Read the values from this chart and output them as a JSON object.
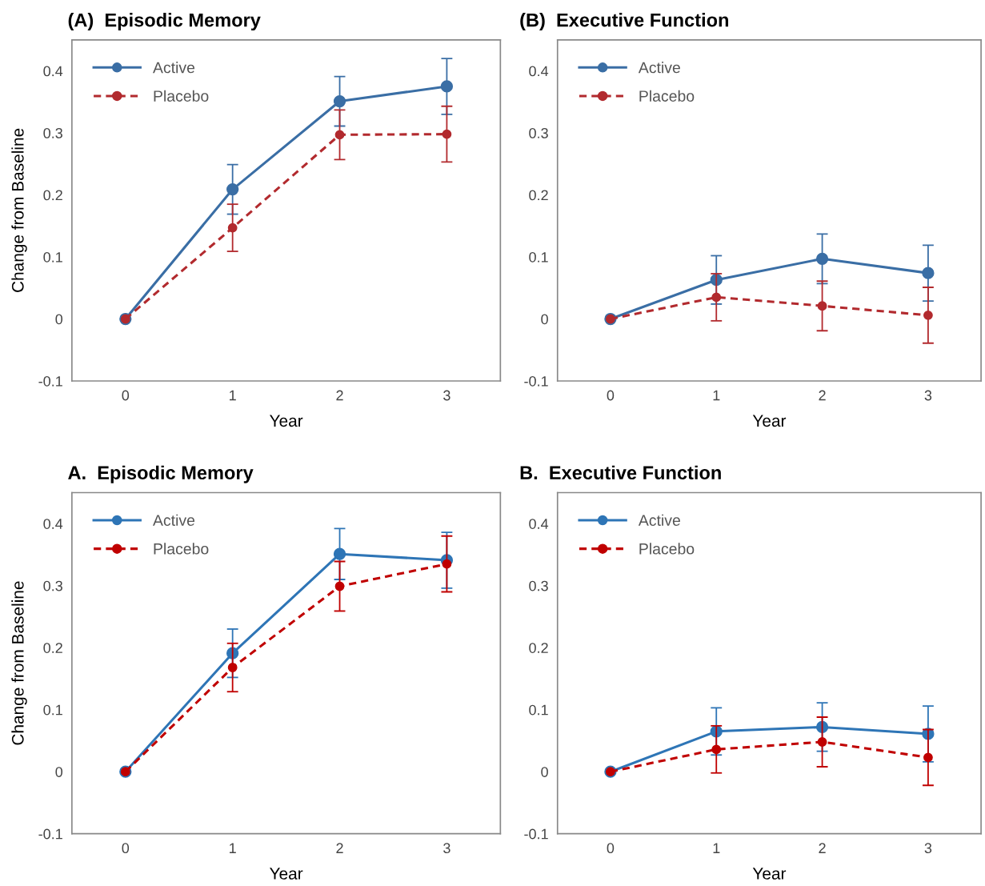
{
  "chart_data": [
    {
      "type": "line",
      "title": "(A)  Episodic Memory",
      "xlabel": "Year",
      "ylabel": "Change from Baseline",
      "x": [
        0,
        1,
        2,
        3
      ],
      "xlim": [
        -0.5,
        3.5
      ],
      "xticks": [
        0,
        1,
        2,
        3
      ],
      "ylim": [
        -0.1,
        0.45
      ],
      "yticks": [
        -0.1,
        0,
        0.1,
        0.2,
        0.3,
        0.4
      ],
      "grid": false,
      "legend": "top left",
      "marker": "circle",
      "series": [
        {
          "name": "Active",
          "color": "#3a6ea5",
          "line_style": "solid",
          "values": [
            0,
            0.209,
            0.351,
            0.375
          ],
          "errors": [
            null,
            0.04,
            0.04,
            0.045
          ]
        },
        {
          "name": "Placebo",
          "color": "#b22a2e",
          "line_style": "dashed",
          "values": [
            0,
            0.147,
            0.297,
            0.298
          ],
          "errors": [
            null,
            0.038,
            0.04,
            0.045
          ]
        }
      ]
    },
    {
      "type": "line",
      "title": "(B)  Executive Function",
      "xlabel": "Year",
      "x": [
        0,
        1,
        2,
        3
      ],
      "xlim": [
        -0.5,
        3.5
      ],
      "xticks": [
        0,
        1,
        2,
        3
      ],
      "ylim": [
        -0.1,
        0.45
      ],
      "yticks": [
        -0.1,
        0,
        0.1,
        0.2,
        0.3,
        0.4
      ],
      "grid": false,
      "legend": "top left",
      "marker": "circle",
      "series": [
        {
          "name": "Active",
          "color": "#3a6ea5",
          "line_style": "solid",
          "values": [
            0,
            0.063,
            0.097,
            0.074
          ],
          "errors": [
            null,
            0.039,
            0.04,
            0.045
          ]
        },
        {
          "name": "Placebo",
          "color": "#b22a2e",
          "line_style": "dashed",
          "values": [
            0,
            0.035,
            0.021,
            0.006
          ],
          "errors": [
            null,
            0.038,
            0.04,
            0.045
          ]
        }
      ]
    },
    {
      "type": "line",
      "title": "A.  Episodic Memory",
      "xlabel": "Year",
      "ylabel": "Change from Baseline",
      "x": [
        0,
        1,
        2,
        3
      ],
      "xlim": [
        -0.5,
        3.5
      ],
      "xticks": [
        0,
        1,
        2,
        3
      ],
      "ylim": [
        -0.1,
        0.45
      ],
      "yticks": [
        -0.1,
        0,
        0.1,
        0.2,
        0.3,
        0.4
      ],
      "grid": false,
      "legend": "top left",
      "marker": "circle",
      "series": [
        {
          "name": "Active",
          "color": "#2e75b6",
          "line_style": "solid",
          "values": [
            0,
            0.191,
            0.351,
            0.341
          ],
          "errors": [
            null,
            0.039,
            0.041,
            0.045
          ]
        },
        {
          "name": "Placebo",
          "color": "#c00000",
          "line_style": "dashed",
          "values": [
            0,
            0.168,
            0.299,
            0.335
          ],
          "errors": [
            null,
            0.039,
            0.04,
            0.045
          ]
        }
      ]
    },
    {
      "type": "line",
      "title": "B.  Executive Function",
      "xlabel": "Year",
      "x": [
        0,
        1,
        2,
        3
      ],
      "xlim": [
        -0.5,
        3.5
      ],
      "xticks": [
        0,
        1,
        2,
        3
      ],
      "ylim": [
        -0.1,
        0.45
      ],
      "yticks": [
        -0.1,
        0,
        0.1,
        0.2,
        0.3,
        0.4
      ],
      "grid": false,
      "legend": "top left",
      "marker": "circle",
      "series": [
        {
          "name": "Active",
          "color": "#2e75b6",
          "line_style": "solid",
          "values": [
            0,
            0.065,
            0.072,
            0.061
          ],
          "errors": [
            null,
            0.038,
            0.039,
            0.045
          ]
        },
        {
          "name": "Placebo",
          "color": "#c00000",
          "line_style": "dashed",
          "values": [
            0,
            0.036,
            0.048,
            0.023
          ],
          "errors": [
            null,
            0.038,
            0.04,
            0.045
          ]
        }
      ]
    }
  ]
}
